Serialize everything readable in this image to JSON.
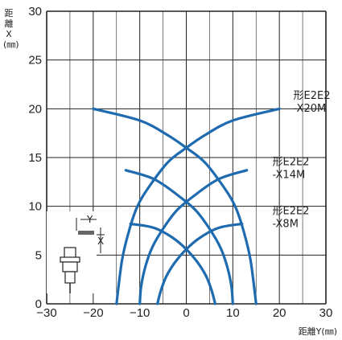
{
  "chart_data": {
    "type": "line",
    "ylabel": "距\n離\nX\n(㎜)",
    "xlabel": "距離Y(㎜)",
    "xlim": [
      -30,
      30
    ],
    "ylim": [
      0,
      30
    ],
    "xticks": [
      -30,
      -20,
      -10,
      0,
      10,
      20,
      30
    ],
    "yticks": [
      0,
      5,
      10,
      15,
      20,
      25,
      30
    ],
    "grid": true,
    "series": [
      {
        "name": "形E2E2\n-X20M",
        "curves": [
          {
            "side": "left",
            "x": [
              -20,
              -10,
              -4,
              0,
              4,
              8,
              10.5,
              12.3,
              13.8,
              15
            ],
            "y": [
              20,
              18.8,
              17.3,
              16,
              14.5,
              12,
              10,
              7.5,
              4.5,
              0
            ]
          },
          {
            "side": "right",
            "x": [
              20,
              10,
              4,
              0,
              -4,
              -8,
              -10.5,
              -12.3,
              -13.8,
              -15
            ],
            "y": [
              20,
              18.8,
              17.3,
              16,
              14.5,
              12,
              10,
              7.5,
              4.5,
              0
            ]
          }
        ]
      },
      {
        "name": "形E2E2\n-X14M",
        "curves": [
          {
            "side": "left",
            "x": [
              -13,
              -7,
              -2,
              2,
              5,
              7.3,
              8.8,
              9.7,
              10
            ],
            "y": [
              13.7,
              12.8,
              11.2,
              9.6,
              7.7,
              5.8,
              3.8,
              1.8,
              0
            ]
          },
          {
            "side": "right",
            "x": [
              13,
              7,
              2,
              -2,
              -5,
              -7.3,
              -8.8,
              -9.7,
              -10
            ],
            "y": [
              13.7,
              12.8,
              11.2,
              9.6,
              7.7,
              5.8,
              3.8,
              1.8,
              0
            ]
          }
        ]
      },
      {
        "name": "形E2E2\n-X8M",
        "curves": [
          {
            "side": "left",
            "x": [
              -12,
              -7,
              -3,
              0,
              2.5,
              4.3,
              5.5,
              6.2
            ],
            "y": [
              8.2,
              7.8,
              6.8,
              5.6,
              4.2,
              2.8,
              1.3,
              0
            ]
          },
          {
            "side": "right",
            "x": [
              12,
              7,
              3,
              0,
              -2.5,
              -4.3,
              -5.5,
              -6.2
            ],
            "y": [
              8.2,
              7.8,
              6.8,
              5.6,
              4.2,
              2.8,
              1.3,
              0
            ]
          }
        ]
      }
    ]
  },
  "inset": {
    "y_label": "Y",
    "x_label": "X"
  },
  "colors": {
    "curve": "#1f6bb0",
    "grid": "#222222"
  }
}
